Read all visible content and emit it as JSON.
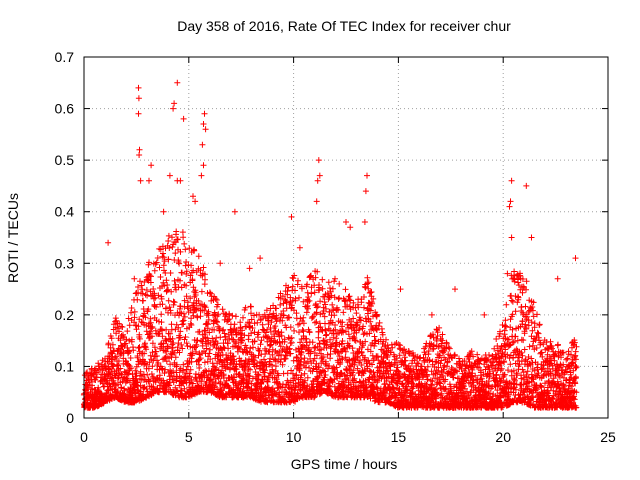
{
  "chart_data": {
    "type": "scatter",
    "title": "Day 358 of 2016, Rate Of TEC Index for receiver chur",
    "xlabel": "GPS time / hours",
    "ylabel": "ROTI / TECUs",
    "xlim": [
      0,
      25
    ],
    "ylim": [
      0,
      0.7
    ],
    "xticks": [
      "0",
      "5",
      "10",
      "15",
      "20",
      "25"
    ],
    "yticks": [
      "0",
      "0.1",
      "0.2",
      "0.3",
      "0.4",
      "0.5",
      "0.6",
      "0.7"
    ],
    "grid": true,
    "marker": "+",
    "color": "#ff0000",
    "series": [
      {
        "name": "ROTI",
        "points": [
          [
            2.6,
            0.64
          ],
          [
            2.62,
            0.62
          ],
          [
            2.6,
            0.59
          ],
          [
            2.65,
            0.52
          ],
          [
            2.63,
            0.51
          ],
          [
            2.7,
            0.46
          ],
          [
            4.45,
            0.65
          ],
          [
            4.3,
            0.61
          ],
          [
            4.25,
            0.6
          ],
          [
            4.75,
            0.58
          ],
          [
            5.75,
            0.59
          ],
          [
            5.7,
            0.57
          ],
          [
            5.8,
            0.56
          ],
          [
            5.65,
            0.53
          ],
          [
            5.7,
            0.49
          ],
          [
            5.6,
            0.47
          ],
          [
            4.45,
            0.46
          ],
          [
            4.6,
            0.46
          ],
          [
            4.1,
            0.47
          ],
          [
            3.2,
            0.49
          ],
          [
            3.1,
            0.46
          ],
          [
            11.2,
            0.5
          ],
          [
            11.25,
            0.47
          ],
          [
            11.15,
            0.46
          ],
          [
            13.5,
            0.47
          ],
          [
            13.45,
            0.44
          ],
          [
            13.4,
            0.38
          ],
          [
            11.1,
            0.42
          ],
          [
            20.4,
            0.46
          ],
          [
            20.35,
            0.42
          ],
          [
            20.3,
            0.41
          ],
          [
            21.1,
            0.45
          ],
          [
            1.15,
            0.34
          ],
          [
            7.2,
            0.4
          ],
          [
            12.5,
            0.38
          ],
          [
            12.7,
            0.37
          ],
          [
            17.7,
            0.25
          ],
          [
            23.45,
            0.31
          ],
          [
            22.6,
            0.27
          ],
          [
            21.35,
            0.35
          ],
          [
            20.4,
            0.35
          ],
          [
            20.2,
            0.28
          ],
          [
            5.2,
            0.43
          ],
          [
            5.3,
            0.42
          ],
          [
            3.8,
            0.4
          ],
          [
            9.9,
            0.39
          ],
          [
            10.3,
            0.33
          ],
          [
            8.4,
            0.31
          ],
          [
            15.1,
            0.25
          ],
          [
            16.6,
            0.2
          ],
          [
            19.1,
            0.2
          ],
          [
            2.4,
            0.27
          ],
          [
            6.5,
            0.3
          ],
          [
            7.9,
            0.29
          ]
        ],
        "envelope": {
          "x": [
            0,
            0.5,
            1,
            1.5,
            2,
            2.5,
            3,
            3.5,
            4,
            4.5,
            5,
            5.5,
            6,
            6.5,
            7,
            7.5,
            8,
            8.5,
            9,
            9.5,
            10,
            10.5,
            11,
            11.5,
            12,
            12.5,
            13,
            13.5,
            14,
            14.5,
            15,
            15.5,
            16,
            16.5,
            17,
            17.5,
            18,
            18.5,
            19,
            19.5,
            20,
            20.5,
            21,
            21.5,
            22,
            22.5,
            23,
            23.5
          ],
          "lower": [
            0.02,
            0.02,
            0.03,
            0.04,
            0.03,
            0.03,
            0.04,
            0.05,
            0.05,
            0.04,
            0.04,
            0.05,
            0.05,
            0.04,
            0.04,
            0.04,
            0.04,
            0.03,
            0.03,
            0.03,
            0.03,
            0.04,
            0.04,
            0.05,
            0.04,
            0.04,
            0.04,
            0.04,
            0.03,
            0.03,
            0.02,
            0.02,
            0.02,
            0.02,
            0.02,
            0.02,
            0.02,
            0.02,
            0.02,
            0.02,
            0.02,
            0.03,
            0.03,
            0.02,
            0.02,
            0.02,
            0.02,
            0.02
          ],
          "upper": [
            0.09,
            0.1,
            0.12,
            0.2,
            0.18,
            0.25,
            0.3,
            0.33,
            0.35,
            0.38,
            0.35,
            0.32,
            0.25,
            0.22,
            0.2,
            0.22,
            0.22,
            0.2,
            0.22,
            0.25,
            0.28,
            0.25,
            0.3,
            0.26,
            0.28,
            0.25,
            0.22,
            0.3,
            0.2,
            0.15,
            0.15,
            0.13,
            0.12,
            0.16,
            0.18,
            0.13,
            0.12,
            0.13,
            0.12,
            0.13,
            0.2,
            0.3,
            0.28,
            0.22,
            0.15,
            0.15,
            0.12,
            0.18
          ]
        }
      }
    ]
  }
}
